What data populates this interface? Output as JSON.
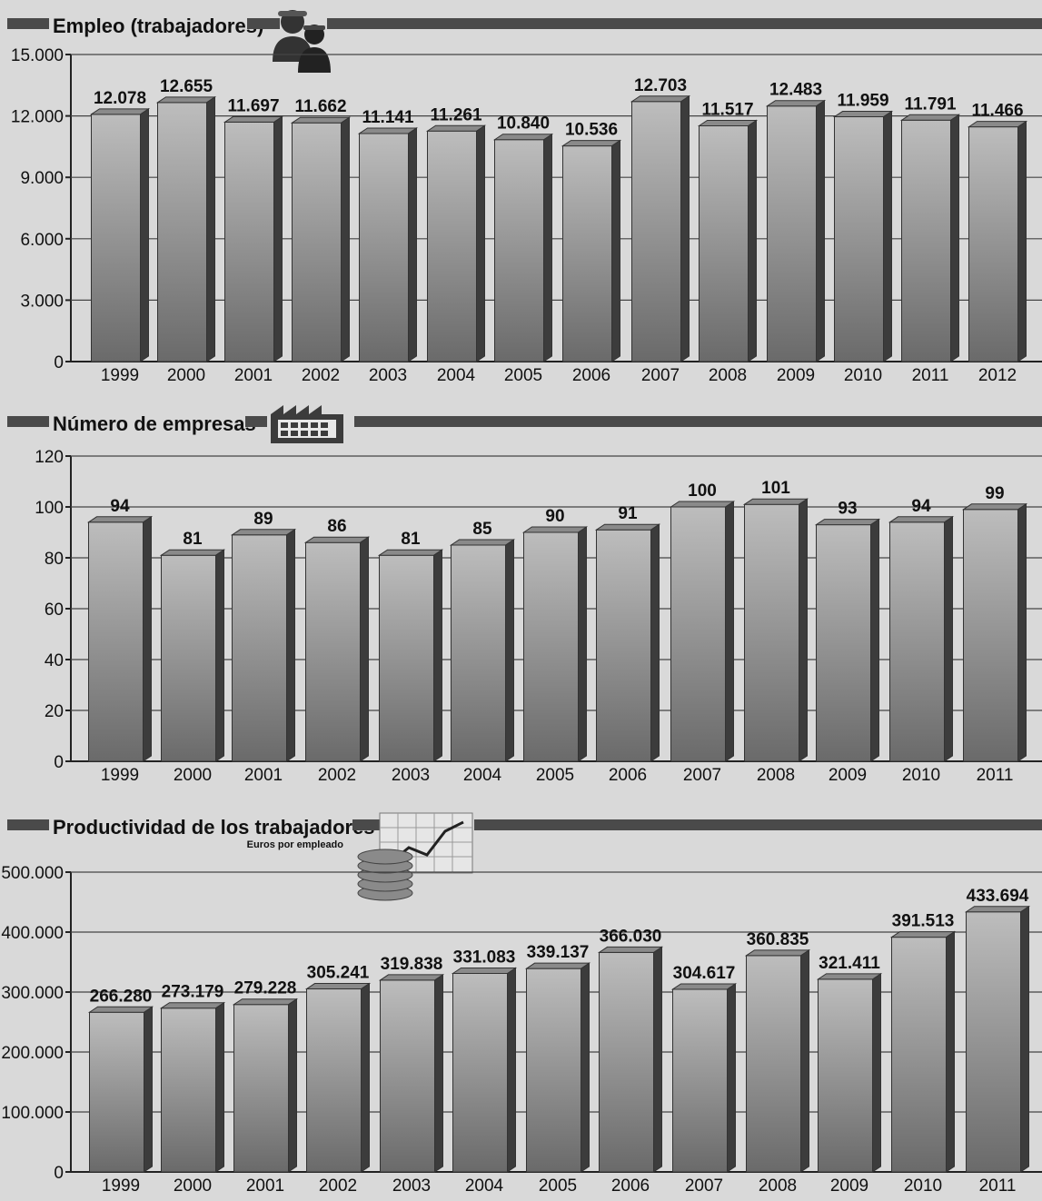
{
  "chart_data": [
    {
      "type": "bar",
      "title": "Empleo (trabajadores)",
      "subtitle": "",
      "categories": [
        "1999",
        "2000",
        "2001",
        "2002",
        "2003",
        "2004",
        "2005",
        "2006",
        "2007",
        "2008",
        "2009",
        "2010",
        "2011",
        "2012"
      ],
      "values": [
        12078,
        12655,
        11697,
        11662,
        11141,
        11261,
        10840,
        10536,
        12703,
        11517,
        12483,
        11959,
        11791,
        11466
      ],
      "value_labels": [
        "12.078",
        "12.655",
        "11.697",
        "11.662",
        "11.141",
        "11.261",
        "10.840",
        "10.536",
        "12.703",
        "11.517",
        "12.483",
        "11.959",
        "11.791",
        "11.466"
      ],
      "yticks": [
        0,
        3000,
        6000,
        9000,
        12000,
        15000
      ],
      "ytick_labels": [
        "0",
        "3.000",
        "6.000",
        "9.000",
        "12.000",
        "15.000"
      ],
      "ylim": [
        0,
        15000
      ],
      "grid": true,
      "icon": "workers-icon"
    },
    {
      "type": "bar",
      "title": "Número de empresas",
      "subtitle": "",
      "categories": [
        "1999",
        "2000",
        "2001",
        "2002",
        "2003",
        "2004",
        "2005",
        "2006",
        "2007",
        "2008",
        "2009",
        "2010",
        "2011"
      ],
      "values": [
        94,
        81,
        89,
        86,
        81,
        85,
        90,
        91,
        100,
        101,
        93,
        94,
        99
      ],
      "value_labels": [
        "94",
        "81",
        "89",
        "86",
        "81",
        "85",
        "90",
        "91",
        "100",
        "101",
        "93",
        "94",
        "99"
      ],
      "yticks": [
        0,
        20,
        40,
        60,
        80,
        100,
        120
      ],
      "ytick_labels": [
        "0",
        "20",
        "40",
        "60",
        "80",
        "100",
        "120"
      ],
      "ylim": [
        0,
        120
      ],
      "grid": true,
      "icon": "factory-icon"
    },
    {
      "type": "bar",
      "title": "Productividad de los trabajadores",
      "subtitle": "Euros por empleado",
      "categories": [
        "1999",
        "2000",
        "2001",
        "2002",
        "2003",
        "2004",
        "2005",
        "2006",
        "2007",
        "2008",
        "2009",
        "2010",
        "2011"
      ],
      "values": [
        266280,
        273179,
        279228,
        305241,
        319838,
        331083,
        339137,
        366030,
        304617,
        360835,
        321411,
        391513,
        433694
      ],
      "value_labels": [
        "266.280",
        "273.179",
        "279.228",
        "305.241",
        "319.838",
        "331.083",
        "339.137",
        "366.030",
        "304.617",
        "360.835",
        "321.411",
        "391.513",
        "433.694"
      ],
      "yticks": [
        0,
        100000,
        200000,
        300000,
        400000,
        500000
      ],
      "ytick_labels": [
        "0",
        "100.000",
        "200.000",
        "300.000",
        "400.000",
        "500.000"
      ],
      "ylim": [
        0,
        500000
      ],
      "grid": true,
      "icon": "coins-growth-icon"
    }
  ],
  "colors": {
    "background": "#d9d9d9",
    "bar_top": "#b8b8b8",
    "bar_bottom": "#6e6e6e",
    "bar_side": "#3c3c3c",
    "bar_cap": "#8a8a8a",
    "title_band": "#4a4a4a",
    "text": "#111111"
  }
}
